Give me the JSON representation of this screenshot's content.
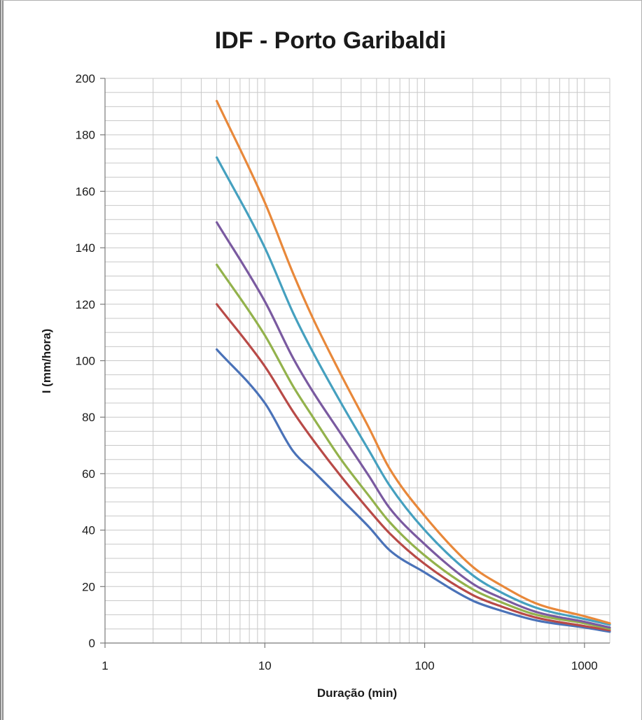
{
  "chart_data": {
    "type": "line",
    "title": "IDF - Porto Garibaldi",
    "xlabel": "Duração (min)",
    "ylabel": "I (mm/hora)",
    "x_scale": "log",
    "xlim": [
      1,
      1440
    ],
    "ylim": [
      0,
      200
    ],
    "x_ticks": [
      1,
      10,
      100,
      1000
    ],
    "x_tick_labels": [
      "1",
      "10",
      "100",
      "1000"
    ],
    "y_ticks": [
      0,
      20,
      40,
      60,
      80,
      100,
      120,
      140,
      160,
      180,
      200
    ],
    "y_tick_labels": [
      "0",
      "20",
      "40",
      "60",
      "80",
      "100",
      "120",
      "140",
      "160",
      "180",
      "200"
    ],
    "grid": true,
    "legend": "none",
    "x": [
      5,
      10,
      15,
      20,
      30,
      45,
      60,
      100,
      200,
      300,
      500,
      1000,
      1440
    ],
    "series": [
      {
        "color": "#4a72b8",
        "values": [
          104,
          85,
          68,
          61,
          51,
          41,
          33,
          25,
          15,
          11.5,
          8,
          5.5,
          4
        ]
      },
      {
        "color": "#b84a47",
        "values": [
          120,
          98,
          82,
          72,
          59,
          47,
          39,
          28,
          17,
          13,
          9,
          6,
          4.5
        ]
      },
      {
        "color": "#93b24c",
        "values": [
          134,
          109,
          91,
          80,
          65,
          52,
          43,
          31,
          19,
          14.5,
          10,
          7,
          5
        ]
      },
      {
        "color": "#7a5aa0",
        "values": [
          149,
          121,
          101,
          89,
          74,
          59,
          48,
          35,
          21,
          16,
          11,
          7.5,
          5.5
        ]
      },
      {
        "color": "#45a0bf",
        "values": [
          172,
          140,
          117,
          103,
          85,
          68,
          56,
          40,
          24,
          18,
          12.5,
          8.5,
          6.5
        ]
      },
      {
        "color": "#e8883a",
        "values": [
          192,
          156,
          131,
          115,
          95,
          76,
          62,
          45,
          27,
          20.5,
          14,
          9.5,
          7
        ]
      }
    ]
  }
}
